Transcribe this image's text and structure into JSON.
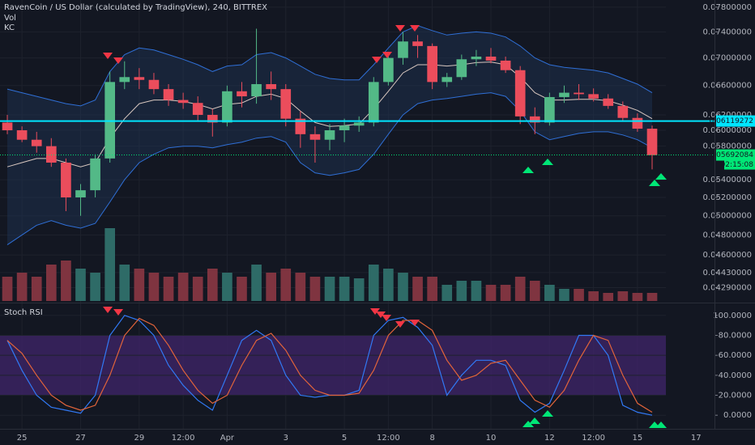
{
  "chart_data": [
    {
      "type": "candlestick",
      "title": "RavenCoin / US Dollar (calculated by TradingView), 240, BITTREX",
      "indicator_labels": [
        "Vol",
        "KC"
      ],
      "log_scale": true,
      "grid": true,
      "up_color": "#53b987",
      "down_color": "#eb4d5c",
      "volume_up_color": "#2e6b67",
      "volume_down_color": "#7f3440",
      "kc_color": "#2f6fd6",
      "kc_middle_color": "#d9c8c0",
      "kc_fill": "#1e3556",
      "x": [
        -0.5,
        0,
        0.5,
        1,
        1.5,
        2,
        2.5,
        3,
        3.5,
        4,
        4.5,
        5,
        5.5,
        6,
        6.5,
        7,
        7.5,
        8,
        8.5,
        9,
        9.5,
        10,
        10.5,
        11,
        11.5,
        12,
        12.5,
        13,
        13.5,
        14,
        14.5,
        15,
        15.5,
        16,
        16.5,
        17,
        17.5,
        18,
        18.5,
        19,
        19.5,
        20,
        20.5,
        21,
        21.5
      ],
      "open": [
        0.061,
        0.06,
        0.0588,
        0.058,
        0.056,
        0.052,
        0.0528,
        0.0565,
        0.0665,
        0.0672,
        0.0668,
        0.0655,
        0.064,
        0.0636,
        0.062,
        0.061,
        0.0652,
        0.0645,
        0.0662,
        0.0655,
        0.0615,
        0.0595,
        0.0588,
        0.06,
        0.0606,
        0.061,
        0.0665,
        0.07,
        0.0725,
        0.0718,
        0.0665,
        0.0672,
        0.0698,
        0.0702,
        0.0696,
        0.0682,
        0.0618,
        0.061,
        0.0644,
        0.065,
        0.0648,
        0.0642,
        0.0632,
        0.0616,
        0.0602
      ],
      "high": [
        0.062,
        0.0605,
        0.0598,
        0.059,
        0.0565,
        0.0535,
        0.057,
        0.068,
        0.0695,
        0.0685,
        0.0678,
        0.0662,
        0.065,
        0.0645,
        0.0628,
        0.066,
        0.0665,
        0.0745,
        0.068,
        0.0662,
        0.0625,
        0.0605,
        0.0608,
        0.0615,
        0.0618,
        0.0672,
        0.0708,
        0.074,
        0.0735,
        0.0722,
        0.0678,
        0.0705,
        0.0712,
        0.0715,
        0.0702,
        0.0688,
        0.063,
        0.065,
        0.066,
        0.0662,
        0.0656,
        0.0648,
        0.0638,
        0.0622,
        0.0606
      ],
      "low": [
        0.0595,
        0.0585,
        0.0572,
        0.0555,
        0.0505,
        0.05,
        0.052,
        0.056,
        0.0655,
        0.0655,
        0.0648,
        0.0632,
        0.0628,
        0.0612,
        0.0592,
        0.0605,
        0.063,
        0.0635,
        0.064,
        0.0605,
        0.0578,
        0.056,
        0.0575,
        0.0585,
        0.0598,
        0.0605,
        0.066,
        0.069,
        0.07,
        0.0655,
        0.0658,
        0.0668,
        0.0688,
        0.0692,
        0.0678,
        0.0608,
        0.0595,
        0.0606,
        0.0636,
        0.064,
        0.0638,
        0.0628,
        0.0612,
        0.0598,
        0.0552
      ],
      "close": [
        0.06,
        0.0588,
        0.058,
        0.056,
        0.052,
        0.0528,
        0.0565,
        0.0665,
        0.0672,
        0.0668,
        0.0655,
        0.064,
        0.0636,
        0.062,
        0.061,
        0.0652,
        0.0645,
        0.0662,
        0.0655,
        0.0615,
        0.0595,
        0.0588,
        0.06,
        0.0606,
        0.061,
        0.0665,
        0.07,
        0.0725,
        0.0718,
        0.0665,
        0.0672,
        0.0698,
        0.0702,
        0.0696,
        0.0682,
        0.0618,
        0.061,
        0.0644,
        0.065,
        0.0648,
        0.0642,
        0.0632,
        0.0616,
        0.0602,
        0.0569
      ],
      "volume": [
        30,
        35,
        30,
        45,
        50,
        40,
        35,
        90,
        45,
        40,
        35,
        30,
        35,
        30,
        40,
        35,
        30,
        45,
        35,
        40,
        35,
        30,
        30,
        30,
        28,
        45,
        40,
        35,
        30,
        30,
        20,
        25,
        25,
        20,
        20,
        30,
        25,
        20,
        15,
        15,
        12,
        10,
        12,
        10,
        10
      ],
      "kc": {
        "upper": [
          0.0655,
          0.065,
          0.0645,
          0.064,
          0.0635,
          0.0632,
          0.064,
          0.068,
          0.0705,
          0.0715,
          0.0712,
          0.0705,
          0.0698,
          0.069,
          0.068,
          0.0688,
          0.069,
          0.0705,
          0.0708,
          0.07,
          0.0688,
          0.0676,
          0.067,
          0.0668,
          0.0668,
          0.069,
          0.0715,
          0.074,
          0.075,
          0.0742,
          0.0735,
          0.0738,
          0.074,
          0.0738,
          0.0732,
          0.0718,
          0.07,
          0.069,
          0.0686,
          0.0684,
          0.0682,
          0.0678,
          0.067,
          0.0662,
          0.065
        ],
        "middle": [
          0.0555,
          0.056,
          0.0565,
          0.0565,
          0.056,
          0.0555,
          0.056,
          0.059,
          0.0615,
          0.0635,
          0.064,
          0.064,
          0.0638,
          0.0634,
          0.0628,
          0.0634,
          0.0636,
          0.0645,
          0.0648,
          0.0642,
          0.0625,
          0.061,
          0.0605,
          0.0606,
          0.0608,
          0.0628,
          0.0652,
          0.0678,
          0.069,
          0.069,
          0.0688,
          0.069,
          0.0693,
          0.0694,
          0.069,
          0.0672,
          0.065,
          0.064,
          0.064,
          0.0641,
          0.0641,
          0.0639,
          0.0633,
          0.0626,
          0.0615
        ],
        "lower": [
          0.047,
          0.048,
          0.049,
          0.0495,
          0.049,
          0.0487,
          0.0492,
          0.0515,
          0.054,
          0.056,
          0.057,
          0.0578,
          0.058,
          0.058,
          0.0578,
          0.0582,
          0.0585,
          0.059,
          0.0592,
          0.0585,
          0.056,
          0.0548,
          0.0545,
          0.0548,
          0.0552,
          0.057,
          0.0595,
          0.062,
          0.0635,
          0.064,
          0.0642,
          0.0645,
          0.0648,
          0.065,
          0.0645,
          0.0625,
          0.0598,
          0.0588,
          0.0592,
          0.0596,
          0.0598,
          0.0598,
          0.0594,
          0.0588,
          0.0578
        ]
      },
      "xlim": [
        -0.75,
        21.97
      ],
      "xticks": [
        {
          "value": 0,
          "label": "25"
        },
        {
          "value": 2,
          "label": "27"
        },
        {
          "value": 4,
          "label": "29"
        },
        {
          "value": 5.5,
          "label": "12:00"
        },
        {
          "value": 7,
          "label": "Apr"
        },
        {
          "value": 9,
          "label": "3"
        },
        {
          "value": 11,
          "label": "5"
        },
        {
          "value": 12.5,
          "label": "12:00"
        },
        {
          "value": 14,
          "label": "8"
        },
        {
          "value": 16,
          "label": "10"
        },
        {
          "value": 18,
          "label": "12"
        },
        {
          "value": 19.5,
          "label": "12:00"
        },
        {
          "value": 21,
          "label": "15"
        },
        {
          "value": 23,
          "label": "17"
        }
      ],
      "ylim": [
        0.0417,
        0.0792
      ],
      "yticks": [
        {
          "value": 0.078,
          "label": "0.07800000"
        },
        {
          "value": 0.074,
          "label": "0.07400000"
        },
        {
          "value": 0.07,
          "label": "0.07000000"
        },
        {
          "value": 0.066,
          "label": "0.06600000"
        },
        {
          "value": 0.062,
          "label": "0.06200000"
        },
        {
          "value": 0.06,
          "label": "0.06000000"
        },
        {
          "value": 0.058,
          "label": "0.05800000"
        },
        {
          "value": 0.054,
          "label": "0.05400000"
        },
        {
          "value": 0.052,
          "label": "0.05200000"
        },
        {
          "value": 0.05,
          "label": "0.05000000"
        },
        {
          "value": 0.048,
          "label": "0.04800000"
        },
        {
          "value": 0.046,
          "label": "0.04600000"
        },
        {
          "value": 0.0443,
          "label": "0.04430000"
        },
        {
          "value": 0.0429,
          "label": "0.04290000"
        }
      ],
      "hline": {
        "value": 0.06119272,
        "color": "#00e5ff"
      },
      "last_price": {
        "value": 0.05692084,
        "color": "#00e676"
      },
      "countdown": "02:15:08"
    },
    {
      "type": "line",
      "title": "Stoch RSI",
      "grid": true,
      "x": [
        -0.5,
        0,
        0.5,
        1,
        1.5,
        2,
        2.5,
        3,
        3.5,
        4,
        4.5,
        5,
        5.5,
        6,
        6.5,
        7,
        7.5,
        8,
        8.5,
        9,
        9.5,
        10,
        10.5,
        11,
        11.5,
        12,
        12.5,
        13,
        13.5,
        14,
        14.5,
        15,
        15.5,
        16,
        16.5,
        17,
        17.5,
        18,
        18.5,
        19,
        19.5,
        20,
        20.5,
        21,
        21.5
      ],
      "xlim": [
        -0.75,
        21.97
      ],
      "series": [
        {
          "color": "#3179f5",
          "values": [
            75,
            45,
            20,
            8,
            5,
            2,
            20,
            80,
            100,
            95,
            80,
            50,
            30,
            15,
            5,
            40,
            75,
            85,
            75,
            40,
            20,
            18,
            20,
            20,
            25,
            80,
            95,
            98,
            88,
            70,
            20,
            40,
            55,
            55,
            50,
            15,
            3,
            12,
            45,
            80,
            80,
            60,
            10,
            3,
            0
          ]
        },
        {
          "color": "#e2643a",
          "values": [
            75,
            62,
            40,
            20,
            10,
            5,
            10,
            40,
            80,
            97,
            90,
            70,
            45,
            25,
            12,
            20,
            50,
            75,
            82,
            65,
            40,
            25,
            20,
            20,
            22,
            45,
            80,
            95,
            95,
            85,
            55,
            35,
            40,
            52,
            55,
            35,
            15,
            8,
            25,
            55,
            80,
            75,
            40,
            12,
            3
          ]
        }
      ],
      "band": [
        20,
        80
      ],
      "band_color": "#3d2466",
      "ylim": [
        -12,
        111.2
      ],
      "yticks": [
        {
          "value": 100,
          "label": "100.0000"
        },
        {
          "value": 80,
          "label": "80.0000"
        },
        {
          "value": 60,
          "label": "60.0000"
        },
        {
          "value": 40,
          "label": "40.0000"
        },
        {
          "value": 20,
          "label": "20.0000"
        },
        {
          "value": 0,
          "label": "0.0000"
        }
      ]
    }
  ]
}
